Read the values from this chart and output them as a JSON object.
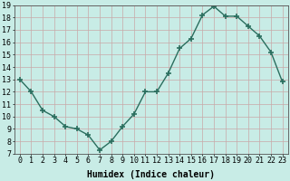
{
  "title": "",
  "xlabel": "Humidex (Indice chaleur)",
  "x": [
    0,
    1,
    2,
    3,
    4,
    5,
    6,
    7,
    8,
    9,
    10,
    11,
    12,
    13,
    14,
    15,
    16,
    17,
    18,
    19,
    20,
    21,
    22,
    23
  ],
  "y": [
    13,
    12,
    10.5,
    10,
    9.2,
    9,
    8.5,
    7.3,
    8,
    9.2,
    10.2,
    12,
    12,
    13.5,
    15.5,
    16.3,
    18.2,
    18.9,
    18.1,
    18.1,
    17.3,
    16.5,
    15.2,
    12.8
  ],
  "line_color": "#2a6e5e",
  "marker": "+",
  "marker_size": 4,
  "bg_color": "#c8ece6",
  "grid_color": "#b0ccc8",
  "ylim": [
    7,
    19
  ],
  "xlim": [
    -0.5,
    23.5
  ],
  "yticks": [
    7,
    8,
    9,
    10,
    11,
    12,
    13,
    14,
    15,
    16,
    17,
    18,
    19
  ],
  "xticks": [
    0,
    1,
    2,
    3,
    4,
    5,
    6,
    7,
    8,
    9,
    10,
    11,
    12,
    13,
    14,
    15,
    16,
    17,
    18,
    19,
    20,
    21,
    22,
    23
  ],
  "xtick_labels": [
    "0",
    "1",
    "2",
    "3",
    "4",
    "5",
    "6",
    "7",
    "8",
    "9",
    "10",
    "11",
    "12",
    "13",
    "14",
    "15",
    "16",
    "17",
    "18",
    "19",
    "20",
    "21",
    "22",
    "23"
  ],
  "label_fontsize": 7,
  "tick_fontsize": 6
}
